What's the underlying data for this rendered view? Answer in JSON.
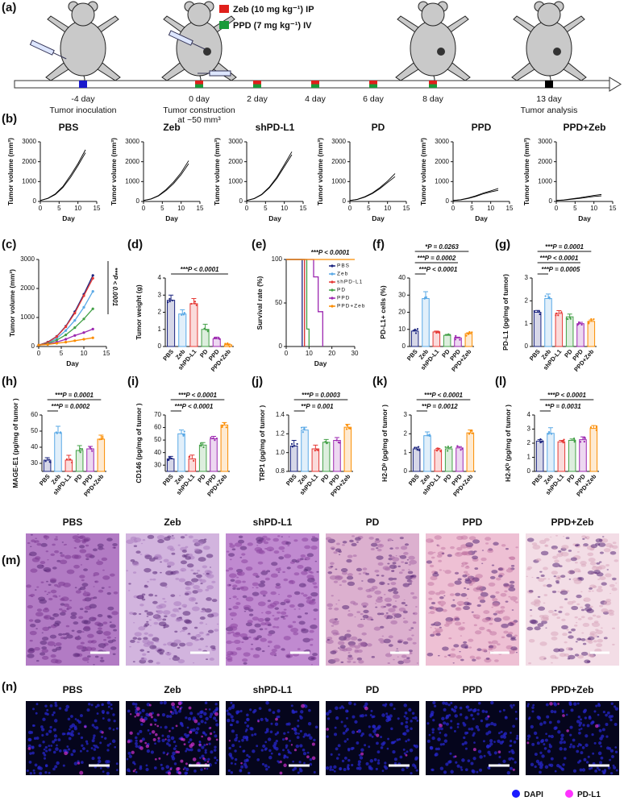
{
  "panel_labels": [
    "(a)",
    "(b)",
    "(c)",
    "(d)",
    "(e)",
    "(f)",
    "(g)",
    "(h)",
    "(i)",
    "(j)",
    "(k)",
    "(l)",
    "(m)",
    "(n)"
  ],
  "panel_a": {
    "legend": [
      {
        "text": "Zeb (10 mg kg⁻¹) IP",
        "color": "#e0201b"
      },
      {
        "text": "PPD (7 mg kg⁻¹) IV",
        "color": "#1a9a3a"
      }
    ],
    "timeline": [
      {
        "day": "-4 day",
        "note": [
          "Tumor inoculation"
        ]
      },
      {
        "day": "0 day",
        "note": [
          "Tumor construction",
          "at ~50 mm³"
        ]
      },
      {
        "day": "2 day"
      },
      {
        "day": "4 day"
      },
      {
        "day": "6 day"
      },
      {
        "day": "8 day"
      },
      {
        "day": "13 day",
        "note": [
          "Tumor analysis"
        ]
      }
    ]
  },
  "chart_data": [
    {
      "type": "line",
      "title": "PBS",
      "ylabel": "Tumor volume (mm³)",
      "xlabel": "Day",
      "x": [
        0,
        2,
        4,
        6,
        8,
        10,
        12
      ],
      "xlim": [
        0,
        15
      ],
      "xticks": [
        0,
        5,
        10,
        15
      ],
      "ylim": [
        0,
        3000
      ],
      "yticks": [
        0,
        1000,
        2000,
        3000
      ],
      "series": [
        {
          "color": "#000000",
          "values": [
            50,
            150,
            350,
            700,
            1200,
            1800,
            2450
          ]
        },
        {
          "color": "#000000",
          "values": [
            50,
            160,
            380,
            750,
            1300,
            1900,
            2600
          ]
        }
      ]
    },
    {
      "type": "line",
      "title": "Zeb",
      "ylabel": "Tumor volume (mm³)",
      "xlabel": "Day",
      "x": [
        0,
        2,
        4,
        6,
        8,
        10,
        12
      ],
      "xlim": [
        0,
        15
      ],
      "xticks": [
        0,
        5,
        10,
        15
      ],
      "ylim": [
        0,
        3000
      ],
      "yticks": [
        0,
        1000,
        2000,
        3000
      ],
      "series": [
        {
          "color": "#000000",
          "values": [
            50,
            120,
            280,
            550,
            900,
            1350,
            1900
          ]
        },
        {
          "color": "#000000",
          "values": [
            50,
            130,
            300,
            600,
            980,
            1450,
            2050
          ]
        }
      ]
    },
    {
      "type": "line",
      "title": "shPD-L1",
      "ylabel": "Tumor volume (mm³)",
      "xlabel": "Day",
      "x": [
        0,
        2,
        4,
        6,
        8,
        10,
        12
      ],
      "xlim": [
        0,
        15
      ],
      "xticks": [
        0,
        5,
        10,
        15
      ],
      "ylim": [
        0,
        3000
      ],
      "yticks": [
        0,
        1000,
        2000,
        3000
      ],
      "series": [
        {
          "color": "#000000",
          "values": [
            50,
            140,
            340,
            680,
            1150,
            1750,
            2350
          ]
        },
        {
          "color": "#000000",
          "values": [
            50,
            150,
            360,
            720,
            1220,
            1850,
            2500
          ]
        }
      ]
    },
    {
      "type": "line",
      "title": "PD",
      "ylabel": "Tumor volume (mm³)",
      "xlabel": "Day",
      "x": [
        0,
        2,
        4,
        6,
        8,
        10,
        12
      ],
      "xlim": [
        0,
        15
      ],
      "xticks": [
        0,
        5,
        10,
        15
      ],
      "ylim": [
        0,
        3000
      ],
      "yticks": [
        0,
        1000,
        2000,
        3000
      ],
      "series": [
        {
          "color": "#000000",
          "values": [
            50,
            100,
            220,
            400,
            650,
            950,
            1250
          ]
        },
        {
          "color": "#000000",
          "values": [
            50,
            110,
            240,
            430,
            700,
            1020,
            1400
          ]
        }
      ]
    },
    {
      "type": "line",
      "title": "PPD",
      "ylabel": "Tumor volume (mm³)",
      "xlabel": "Day",
      "x": [
        0,
        2,
        4,
        6,
        8,
        10,
        12
      ],
      "xlim": [
        0,
        15
      ],
      "xticks": [
        0,
        5,
        10,
        15
      ],
      "ylim": [
        0,
        3000
      ],
      "yticks": [
        0,
        1000,
        2000,
        3000
      ],
      "series": [
        {
          "color": "#000000",
          "values": [
            50,
            80,
            150,
            250,
            380,
            480,
            560
          ]
        },
        {
          "color": "#000000",
          "values": [
            50,
            90,
            170,
            280,
            420,
            530,
            650
          ]
        }
      ]
    },
    {
      "type": "line",
      "title": "PPD+Zeb",
      "ylabel": "Tumor volume (mm³)",
      "xlabel": "Day",
      "x": [
        0,
        2,
        4,
        6,
        8,
        10,
        12
      ],
      "xlim": [
        0,
        15
      ],
      "xticks": [
        0,
        5,
        10,
        15
      ],
      "ylim": [
        0,
        3000
      ],
      "yticks": [
        0,
        1000,
        2000,
        3000
      ],
      "series": [
        {
          "color": "#000000",
          "values": [
            50,
            70,
            110,
            150,
            200,
            250,
            280
          ]
        },
        {
          "color": "#000000",
          "values": [
            50,
            80,
            130,
            180,
            240,
            300,
            350
          ]
        }
      ]
    },
    {
      "type": "line",
      "ylabel": "Tumor volume (mm³)",
      "xlabel": "Day",
      "x": [
        0,
        2,
        4,
        6,
        8,
        10,
        12
      ],
      "xlim": [
        0,
        15
      ],
      "xticks": [
        0,
        5,
        10,
        15
      ],
      "ylim": [
        0,
        3000
      ],
      "yticks": [
        0,
        1000,
        2000,
        3000
      ],
      "annotations": [
        "***P < 0.0001"
      ],
      "series": [
        {
          "color": "#1a237e",
          "values": [
            50,
            150,
            350,
            700,
            1200,
            1800,
            2450
          ]
        },
        {
          "color": "#5aa9e6",
          "values": [
            50,
            120,
            280,
            550,
            900,
            1350,
            1900
          ]
        },
        {
          "color": "#e53935",
          "values": [
            50,
            140,
            340,
            680,
            1150,
            1750,
            2350
          ]
        },
        {
          "color": "#43a047",
          "values": [
            50,
            100,
            220,
            400,
            650,
            950,
            1300
          ]
        },
        {
          "color": "#9c27b0",
          "values": [
            50,
            80,
            150,
            250,
            380,
            480,
            600
          ]
        },
        {
          "color": "#fb8c00",
          "values": [
            50,
            70,
            110,
            150,
            200,
            250,
            300
          ]
        }
      ]
    },
    {
      "type": "bar",
      "ylabel": "Tumor weight (g)",
      "categories": [
        "PBS",
        "Zeb",
        "shPD-L1",
        "PD",
        "PPD",
        "PPD+Zeb"
      ],
      "values": [
        2.7,
        1.9,
        2.5,
        1.0,
        0.45,
        0.1
      ],
      "errors": [
        0.3,
        0.25,
        0.3,
        0.3,
        0.1,
        0.05
      ],
      "colors": [
        "#1a237e",
        "#5aa9e6",
        "#e53935",
        "#43a047",
        "#9c27b0",
        "#fb8c00"
      ],
      "ylim": [
        0,
        4
      ],
      "yticks": [
        0,
        1,
        2,
        3,
        4
      ],
      "annotations": [
        "***P < 0.0001"
      ]
    },
    {
      "type": "line",
      "ylabel": "Survival rate (%)",
      "xlabel": "Day",
      "xlim": [
        0,
        30
      ],
      "xticks": [
        0,
        10,
        20,
        30
      ],
      "ylim": [
        0,
        100
      ],
      "yticks": [
        0,
        50,
        100
      ],
      "annotations": [
        "***P < 0.0001"
      ],
      "legend": true,
      "series": [
        {
          "name": "PBS",
          "color": "#1a237e",
          "x": [
            0,
            7,
            7
          ],
          "values": [
            100,
            100,
            0
          ]
        },
        {
          "name": "Zeb",
          "color": "#5aa9e6",
          "x": [
            0,
            8,
            8
          ],
          "values": [
            100,
            100,
            0
          ]
        },
        {
          "name": "shPD-L1",
          "color": "#e53935",
          "x": [
            0,
            8,
            8
          ],
          "values": [
            100,
            100,
            0
          ]
        },
        {
          "name": "PD",
          "color": "#43a047",
          "x": [
            0,
            9,
            9,
            10,
            10
          ],
          "values": [
            100,
            100,
            20,
            20,
            0
          ]
        },
        {
          "name": "PPD",
          "color": "#9c27b0",
          "x": [
            0,
            12,
            12,
            14,
            14,
            16,
            16
          ],
          "values": [
            100,
            100,
            80,
            80,
            40,
            40,
            0
          ]
        },
        {
          "name": "PPD+Zeb",
          "color": "#fb8c00",
          "x": [
            0,
            30
          ],
          "values": [
            100,
            100
          ]
        }
      ]
    },
    {
      "type": "bar",
      "ylabel": "PD-L1+ cells (%)",
      "categories": [
        "PBS",
        "Zeb",
        "shPD-L1",
        "PD",
        "PPD",
        "PPD+Zeb"
      ],
      "values": [
        9,
        28,
        8.5,
        6.5,
        5,
        7.5
      ],
      "errors": [
        0.5,
        4,
        0.5,
        0.5,
        0.5,
        0.5
      ],
      "colors": [
        "#1a237e",
        "#5aa9e6",
        "#e53935",
        "#43a047",
        "#9c27b0",
        "#fb8c00"
      ],
      "ylim": [
        0,
        40
      ],
      "yticks": [
        0,
        10,
        20,
        30,
        40
      ],
      "annotations": [
        "*P = 0.0263",
        "***P = 0.0002",
        "***P < 0.0001"
      ]
    },
    {
      "type": "bar",
      "ylabel": "PD-L1 (pg/mg of tumor)",
      "categories": [
        "PBS",
        "Zeb",
        "shPD-L1",
        "PD",
        "PPD",
        "PPD+Zeb"
      ],
      "values": [
        1.5,
        2.1,
        1.45,
        1.3,
        1.0,
        1.1
      ],
      "errors": [
        0.08,
        0.2,
        0.12,
        0.12,
        0.06,
        0.06
      ],
      "colors": [
        "#1a237e",
        "#5aa9e6",
        "#e53935",
        "#43a047",
        "#9c27b0",
        "#fb8c00"
      ],
      "ylim": [
        0,
        3
      ],
      "yticks": [
        0,
        1,
        2,
        3
      ],
      "annotations": [
        "***P = 0.0001",
        "***P < 0.0001",
        "***P = 0.0005"
      ]
    },
    {
      "type": "bar",
      "ylabel": "MAGE-E1 (pg/mg of tumor )",
      "categories": [
        "PBS",
        "Zeb",
        "shPD-L1",
        "PD",
        "PPD",
        "PPD+Zeb"
      ],
      "values": [
        32,
        49,
        32,
        38,
        39,
        45
      ],
      "errors": [
        1.5,
        4,
        3,
        3,
        1.5,
        2.5
      ],
      "colors": [
        "#1a237e",
        "#5aa9e6",
        "#e53935",
        "#43a047",
        "#9c27b0",
        "#fb8c00"
      ],
      "ylim": [
        25,
        60
      ],
      "yticks": [
        30,
        40,
        50,
        60
      ],
      "annotations": [
        "***P = 0.0001",
        "***P = 0.0002"
      ]
    },
    {
      "type": "bar",
      "ylabel": "CD146 (pg/mg of tumor )",
      "categories": [
        "PBS",
        "Zeb",
        "shPD-L1",
        "PD",
        "PPD",
        "PPD+Zeb"
      ],
      "values": [
        35,
        55,
        35,
        46,
        51,
        62
      ],
      "errors": [
        2,
        3,
        3,
        2,
        2,
        2
      ],
      "colors": [
        "#1a237e",
        "#5aa9e6",
        "#e53935",
        "#43a047",
        "#9c27b0",
        "#fb8c00"
      ],
      "ylim": [
        25,
        70
      ],
      "yticks": [
        30,
        40,
        50,
        60,
        70
      ],
      "annotations": [
        "***P < 0.0001",
        "***P < 0.0001"
      ]
    },
    {
      "type": "bar",
      "ylabel": "TRP1 (pg/mg of tumor )",
      "categories": [
        "PBS",
        "Zeb",
        "shPD-L1",
        "PD",
        "PPD",
        "PPD+Zeb"
      ],
      "values": [
        1.07,
        1.24,
        1.04,
        1.11,
        1.13,
        1.27
      ],
      "errors": [
        0.06,
        0.03,
        0.04,
        0.03,
        0.03,
        0.03
      ],
      "colors": [
        "#1a237e",
        "#5aa9e6",
        "#e53935",
        "#43a047",
        "#9c27b0",
        "#fb8c00"
      ],
      "ylim": [
        0.8,
        1.4
      ],
      "yticks": [
        0.8,
        {
          "value": 1.0,
          "label": "1.0"
        },
        1.2,
        1.4
      ],
      "annotations": [
        "***P = 0.0003",
        "**P = 0.001"
      ]
    },
    {
      "type": "bar",
      "ylabel": "H2-Dᵇ (pg/mg of tumor )",
      "categories": [
        "PBS",
        "Zeb",
        "shPD-L1",
        "PD",
        "PPD",
        "PPD+Zeb"
      ],
      "values": [
        1.2,
        1.9,
        1.15,
        1.2,
        1.25,
        2.05
      ],
      "errors": [
        0.08,
        0.2,
        0.07,
        0.06,
        0.07,
        0.15
      ],
      "colors": [
        "#1a237e",
        "#5aa9e6",
        "#e53935",
        "#43a047",
        "#9c27b0",
        "#fb8c00"
      ],
      "ylim": [
        0,
        3
      ],
      "yticks": [
        0,
        1,
        2,
        3
      ],
      "annotations": [
        "***P < 0.0001",
        "**P = 0.0012"
      ]
    },
    {
      "type": "bar",
      "ylabel": "H2-Kᵇ (pg/mg of tumor )",
      "categories": [
        "PBS",
        "Zeb",
        "shPD-L1",
        "PD",
        "PPD",
        "PPD+Zeb"
      ],
      "values": [
        2.15,
        2.7,
        2.1,
        2.2,
        2.25,
        3.05
      ],
      "errors": [
        0.1,
        0.4,
        0.1,
        0.1,
        0.2,
        0.2
      ],
      "colors": [
        "#1a237e",
        "#5aa9e6",
        "#e53935",
        "#43a047",
        "#9c27b0",
        "#fb8c00"
      ],
      "ylim": [
        0,
        4
      ],
      "yticks": [
        0,
        1,
        2,
        3,
        4
      ],
      "annotations": [
        "***P < 0.0001",
        "**P = 0.0031"
      ]
    }
  ],
  "panel_m": {
    "titles": [
      "PBS",
      "Zeb",
      "shPD-L1",
      "PD",
      "PPD",
      "PPD+Zeb"
    ]
  },
  "panel_n": {
    "titles": [
      "PBS",
      "Zeb",
      "shPD-L1",
      "PD",
      "PPD",
      "PPD+Zeb"
    ],
    "legend": [
      {
        "text": "DAPI",
        "color": "#1a1aff"
      },
      {
        "text": "PD-L1",
        "color": "#ff33ff"
      }
    ]
  }
}
